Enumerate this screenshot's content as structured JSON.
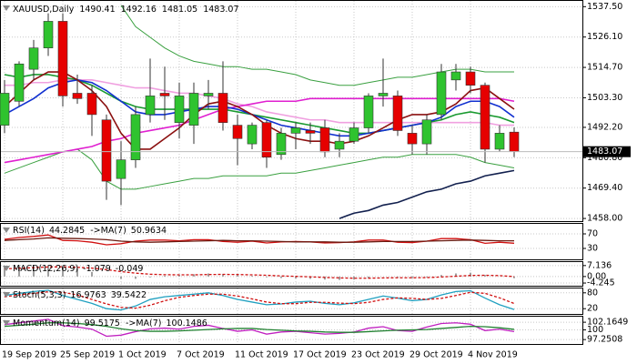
{
  "chart_data": [
    {
      "type": "candlestick",
      "title": "XAUUSD,Daily",
      "categories": [
        "19 Sep 2019",
        null,
        null,
        null,
        "25 Sep 2019",
        null,
        null,
        null,
        "1 Oct 2019",
        null,
        null,
        null,
        "7 Oct 2019",
        null,
        null,
        null,
        "11 Oct 2019",
        null,
        null,
        null,
        "17 Oct 2019",
        null,
        null,
        null,
        "23 Oct 2019",
        null,
        null,
        null,
        "29 Oct 2019",
        null,
        null,
        null,
        "4 Nov 2019",
        null,
        null,
        null
      ],
      "open": [
        1493,
        1502,
        1514,
        1522,
        1532,
        1505,
        1505,
        1495,
        1473,
        1480,
        1497,
        1505,
        1494,
        1493,
        1504,
        1505,
        1493,
        1486,
        1494,
        1482,
        1490,
        1491,
        1492,
        1484,
        1487,
        1492,
        1504,
        1504,
        1490,
        1486,
        1497,
        1510,
        1513,
        1508,
        1484,
        1490.41
      ],
      "high": [
        1510,
        1517,
        1525,
        1535,
        1535,
        1512,
        1508,
        1497,
        1487,
        1500,
        1518,
        1515,
        1509,
        1509,
        1510,
        1517,
        1497,
        1494,
        1495,
        1492,
        1494,
        1494,
        1495,
        1490,
        1494,
        1505,
        1518,
        1506,
        1493,
        1497,
        1516,
        1516,
        1515,
        1509,
        1493,
        1492.16
      ],
      "low": [
        1490,
        1500,
        1510,
        1519,
        1500,
        1501,
        1489,
        1465,
        1463,
        1477,
        1494,
        1495,
        1488,
        1486,
        1499,
        1491,
        1478,
        1484,
        1477,
        1480,
        1484,
        1486,
        1481,
        1481,
        1486,
        1490,
        1500,
        1489,
        1482,
        1482,
        1495,
        1506,
        1505,
        1479,
        1483,
        1481.05
      ],
      "close": [
        1505,
        1516,
        1522,
        1532,
        1504,
        1503,
        1497,
        1472,
        1480,
        1497,
        1504,
        1504,
        1504,
        1505,
        1505,
        1494,
        1488,
        1493,
        1481,
        1490,
        1492,
        1490,
        1483,
        1487,
        1492,
        1504,
        1505,
        1491,
        1486,
        1495,
        1513,
        1513,
        1508,
        1484,
        1490,
        1483.07
      ],
      "candle_colors": {
        "up": "#2fc32f",
        "down": "#e60000"
      },
      "lines": [
        {
          "color": "#3aa040",
          "values": [
            null,
            null,
            null,
            null,
            null,
            null,
            null,
            null,
            1538,
            1530,
            1526,
            1522,
            1519,
            1517,
            1516,
            1515,
            1515,
            1514,
            1514,
            1513,
            1512,
            1510,
            1509,
            1508,
            1508,
            1509,
            1510,
            1511,
            1511,
            1512,
            1513,
            1514,
            1514,
            1513,
            1513,
            1513
          ]
        },
        {
          "color": "#3aa040",
          "values": [
            1475,
            1477,
            1479,
            1481,
            1483,
            1484,
            1480,
            1472,
            1469,
            1469,
            1470,
            1471,
            1472,
            1473,
            1473,
            1474,
            1474,
            1474,
            1474,
            1475,
            1475,
            1476,
            1477,
            1478,
            1479,
            1480,
            1481,
            1481,
            1482,
            1482,
            1482,
            1482,
            1481,
            1479,
            1478,
            1477
          ]
        },
        {
          "color": "#f0a0e0",
          "values": [
            1508,
            1508,
            1509,
            1509,
            1510,
            1510,
            1510,
            1509,
            1508,
            1507,
            1507,
            1506,
            1505,
            1505,
            1504,
            1503,
            1501,
            1500,
            1498,
            1497,
            1496,
            1495,
            1495,
            1494,
            1494,
            1494,
            1494,
            1494,
            1494,
            1494,
            1494,
            1494,
            1494,
            1494,
            1493,
            1493
          ]
        },
        {
          "color": "#e020d0",
          "values": [
            1479,
            1480,
            1481,
            1482,
            1483,
            1484,
            1485,
            1487,
            1488,
            1490,
            1491,
            1492,
            1493,
            1495,
            1497,
            1499,
            1500,
            1501,
            1502,
            1502,
            1502,
            1503,
            1503,
            1503,
            1503,
            1503,
            1503,
            1503,
            1503,
            1503,
            1503,
            1503,
            1503,
            1503,
            1503,
            1502
          ]
        },
        {
          "color": "#12204e",
          "values": [
            null,
            null,
            null,
            null,
            null,
            null,
            null,
            null,
            null,
            null,
            null,
            null,
            null,
            null,
            null,
            null,
            null,
            null,
            null,
            null,
            null,
            null,
            null,
            1458,
            1460,
            1461,
            1463,
            1464,
            1466,
            1468,
            1469,
            1471,
            1472,
            1474,
            1475,
            1476
          ]
        },
        {
          "color": "#1a9a30",
          "values": [
            1512,
            1511,
            1512,
            1512,
            1511,
            1510,
            1508,
            1505,
            1502,
            1500,
            1499,
            1499,
            1499,
            1499,
            1499,
            1499,
            1498,
            1497,
            1496,
            1495,
            1494,
            1493,
            1492,
            1491,
            1490,
            1490,
            1491,
            1492,
            1493,
            1494,
            1495,
            1497,
            1498,
            1497,
            1496,
            1494
          ]
        },
        {
          "color": "#1030d0",
          "values": [
            1497,
            1500,
            1503,
            1507,
            1509,
            1510,
            1509,
            1506,
            1502,
            1498,
            1497,
            1497,
            1498,
            1499,
            1500,
            1500,
            1499,
            1497,
            1495,
            1493,
            1492,
            1491,
            1490,
            1489,
            1489,
            1490,
            1491,
            1492,
            1493,
            1494,
            1496,
            1500,
            1502,
            1502,
            1500,
            1496
          ]
        },
        {
          "color": "#8b1010",
          "values": [
            1500,
            1505,
            1510,
            1513,
            1513,
            1510,
            1506,
            1500,
            1490,
            1484,
            1484,
            1488,
            1492,
            1497,
            1501,
            1502,
            1500,
            1497,
            1493,
            1490,
            1488,
            1487,
            1487,
            1486,
            1487,
            1489,
            1492,
            1495,
            1497,
            1497,
            1498,
            1501,
            1506,
            1507,
            1503,
            1499
          ]
        }
      ],
      "ylim": [
        1457,
        1540
      ],
      "yticks": [
        {
          "value": 1537.5,
          "label": "1537.50"
        },
        {
          "value": 1526.1,
          "label": "1526.10"
        },
        {
          "value": 1514.7,
          "label": "1514.70"
        },
        {
          "value": 1503.3,
          "label": "1503.30"
        },
        {
          "value": 1492.2,
          "label": "1492.20"
        },
        {
          "value": 1480.8,
          "label": "1480.80"
        },
        {
          "value": 1469.4,
          "label": "1469.40"
        },
        {
          "value": 1458,
          "label": "1458.00"
        }
      ],
      "grid": true
    },
    {
      "type": "line",
      "series": [
        {
          "name": "RSI(14)",
          "color": "#d01010",
          "values": [
            55,
            60,
            63,
            67,
            52,
            51,
            47,
            40,
            43,
            50,
            53,
            53,
            51,
            54,
            54,
            49,
            47,
            50,
            45,
            48,
            49,
            48,
            45,
            46,
            48,
            53,
            53,
            47,
            46,
            50,
            57,
            57,
            54,
            44,
            47,
            44.2845
          ]
        },
        {
          "name": "->MA(7)",
          "color": "#6a1a10",
          "values": [
            52,
            54,
            56,
            59,
            58,
            57,
            56,
            54,
            50,
            48,
            47,
            48,
            49,
            50,
            51,
            52,
            51,
            51,
            50,
            49,
            48,
            48,
            48,
            47,
            47,
            48,
            49,
            49,
            49,
            50,
            51,
            52,
            53,
            52,
            51,
            50.9634
          ]
        }
      ],
      "ylim": [
        0,
        100
      ],
      "yticks": [
        70,
        30
      ],
      "grid": true
    },
    {
      "type": "line",
      "series": [
        {
          "name": "MACD(12,26,9)",
          "color": "#a0a0a0",
          "histogram": true,
          "values": [
            6,
            6.5,
            7,
            7.5,
            6,
            5,
            3,
            0,
            -1.5,
            -1.5,
            -0.5,
            0.5,
            1,
            1.5,
            2,
            1.5,
            0.8,
            0.5,
            -0.5,
            -1,
            -1.2,
            -1.5,
            -2,
            -2.2,
            -2,
            -1,
            0,
            -0.5,
            -1,
            -0.5,
            1,
            2,
            2.5,
            1,
            0,
            -1.079
          ]
        },
        {
          "color": "#d01010",
          "dash": true,
          "values": [
            5,
            5.4,
            5.8,
            6.2,
            6.3,
            6,
            5.5,
            4.5,
            3.2,
            2.2,
            1.5,
            1.2,
            1.1,
            1.1,
            1.3,
            1.4,
            1.3,
            1.1,
            0.8,
            0.4,
            0.1,
            -0.2,
            -0.6,
            -0.9,
            -1.1,
            -1.1,
            -0.9,
            -0.8,
            -0.8,
            -0.7,
            -0.3,
            0.2,
            0.7,
            0.8,
            0.6,
            -0.049
          ]
        }
      ],
      "ylim": [
        -6,
        10
      ],
      "yticks": [
        7.136,
        {
          "value": 0,
          "label": "0.00"
        },
        -4.245
      ],
      "grid": true
    },
    {
      "type": "line",
      "series": [
        {
          "name": "Stoch(5,3,3)",
          "color": "#20a0c0",
          "values": [
            70,
            78,
            85,
            90,
            70,
            55,
            40,
            20,
            15,
            30,
            55,
            65,
            70,
            75,
            80,
            70,
            55,
            45,
            35,
            38,
            45,
            48,
            40,
            35,
            42,
            55,
            68,
            60,
            50,
            55,
            72,
            85,
            88,
            60,
            35,
            16.9763
          ]
        },
        {
          "name": "",
          "color": "#d01010",
          "dash": true,
          "values": [
            65,
            72,
            78,
            84,
            82,
            72,
            55,
            38,
            25,
            22,
            33,
            50,
            63,
            70,
            75,
            75,
            68,
            57,
            45,
            39,
            39,
            44,
            44,
            41,
            39,
            44,
            55,
            61,
            59,
            55,
            59,
            70,
            82,
            78,
            61,
            39.5422
          ]
        }
      ],
      "ylim": [
        0,
        100
      ],
      "yticks": [
        80,
        20
      ],
      "grid": true
    },
    {
      "type": "line",
      "series": [
        {
          "name": "Momentum(14)",
          "color": "#c020c0",
          "values": [
            101.5,
            102,
            102.5,
            103,
            101.2,
            100.8,
            100.2,
            98.2,
            98.5,
            99.5,
            100.3,
            100.5,
            100.2,
            101,
            101.3,
            100.4,
            99.6,
            100,
            98.8,
            99.4,
            99.6,
            99.2,
            98.8,
            99,
            99.4,
            100.5,
            100.9,
            99.8,
            99.6,
            100.8,
            101.8,
            102,
            101.6,
            99.8,
            100.2,
            99.5175
          ]
        },
        {
          "name": "->MA(7)",
          "color": "#208030",
          "values": [
            101,
            101.3,
            101.6,
            102,
            102,
            101.8,
            101.5,
            101,
            100.3,
            99.8,
            99.6,
            99.6,
            99.7,
            99.9,
            100.1,
            100.3,
            100.4,
            100.4,
            100.1,
            99.9,
            99.7,
            99.6,
            99.4,
            99.3,
            99.3,
            99.5,
            99.7,
            99.9,
            100,
            100.1,
            100.4,
            100.7,
            101,
            100.9,
            100.6,
            100.1486
          ]
        }
      ],
      "ylim": [
        96,
        104
      ],
      "yticks": [
        102.1649,
        100,
        97.2508
      ],
      "grid": true
    }
  ]
}
